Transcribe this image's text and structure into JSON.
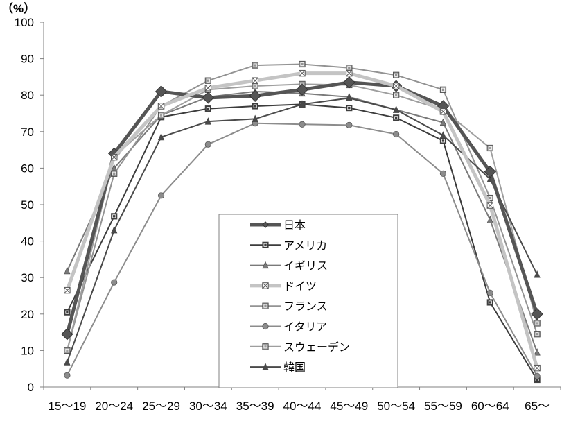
{
  "chart_data": {
    "type": "line",
    "ylabel": "（%）",
    "ylim": [
      0,
      100
    ],
    "yticks": [
      "0",
      "10",
      "20",
      "30",
      "40",
      "50",
      "60",
      "70",
      "80",
      "90",
      "100"
    ],
    "grid": false,
    "legend_position": "center-bottom inside plot",
    "categories": [
      "15～19",
      "20～24",
      "25～29",
      "30～34",
      "35～39",
      "40～44",
      "45～49",
      "50～54",
      "55～59",
      "60～64",
      "65～"
    ],
    "series": [
      {
        "name": "日本",
        "color": "#555555",
        "marker": "diamond",
        "width": 5,
        "values": [
          14.5,
          64.0,
          81.0,
          79.3,
          79.8,
          81.5,
          83.5,
          82.5,
          77.0,
          59.0,
          20.0
        ]
      },
      {
        "name": "アメリカ",
        "color": "#3c3c3c",
        "marker": "square",
        "width": 2,
        "values": [
          20.5,
          46.8,
          74.0,
          76.3,
          77.0,
          77.5,
          76.5,
          73.8,
          67.5,
          23.2,
          2.0
        ]
      },
      {
        "name": "イギリス",
        "color": "#7a7a7a",
        "marker": "triangle",
        "width": 2,
        "values": [
          31.8,
          60.0,
          74.5,
          79.5,
          81.0,
          80.5,
          79.5,
          76.0,
          72.5,
          45.8,
          9.5
        ]
      },
      {
        "name": "ドイツ",
        "color": "#c4c4c4",
        "marker": "xsquare",
        "width": 5,
        "values": [
          26.5,
          63.0,
          77.0,
          82.0,
          84.0,
          86.0,
          86.0,
          82.5,
          75.5,
          49.8,
          5.2
        ]
      },
      {
        "name": "フランス",
        "color": "#939393",
        "marker": "square",
        "width": 2,
        "values": [
          10.0,
          58.5,
          77.0,
          84.0,
          88.2,
          88.5,
          87.5,
          85.5,
          81.5,
          51.8,
          14.5
        ]
      },
      {
        "name": "イタリア",
        "color": "#8c8c8c",
        "marker": "circle",
        "width": 2,
        "values": [
          3.2,
          28.7,
          52.5,
          66.5,
          72.3,
          72.0,
          71.8,
          69.3,
          58.5,
          25.8,
          3.0
        ]
      },
      {
        "name": "スウェーデン",
        "color": "#9e9e9e",
        "marker": "square",
        "width": 2,
        "values": [
          10.0,
          63.2,
          74.5,
          81.5,
          82.5,
          83.0,
          82.8,
          80.0,
          76.0,
          65.5,
          17.5
        ]
      },
      {
        "name": "韓国",
        "color": "#4a4a4a",
        "marker": "triangle",
        "width": 2,
        "values": [
          6.8,
          43.0,
          68.5,
          72.8,
          73.5,
          77.5,
          79.2,
          76.0,
          69.0,
          57.0,
          30.8
        ]
      }
    ]
  }
}
